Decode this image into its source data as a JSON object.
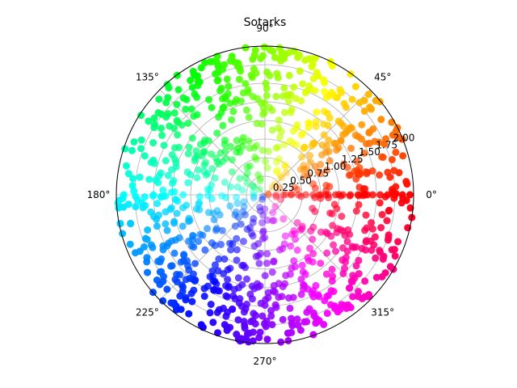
{
  "chart_data": {
    "type": "scatter",
    "projection": "polar",
    "title": "Sotarks",
    "rlim": [
      0,
      2.0
    ],
    "r_ticks": [
      "0.25",
      "0.50",
      "0.75",
      "1.00",
      "1.25",
      "1.50",
      "1.75",
      "2.00"
    ],
    "theta_ticks": [
      "0°",
      "45°",
      "90°",
      "135°",
      "180°",
      "225°",
      "270°",
      "315°"
    ],
    "grid": true,
    "colormap": "hsv (color by angle)",
    "legend": "none",
    "point_count": 1000,
    "points": [
      {
        "theta_deg": 0,
        "r": 0.05
      },
      {
        "theta_deg": 0,
        "r": 0.15
      },
      {
        "theta_deg": 0,
        "r": 0.25
      },
      {
        "theta_deg": 0,
        "r": 0.35
      },
      {
        "theta_deg": 0,
        "r": 0.45
      },
      {
        "theta_deg": 0,
        "r": 0.55
      },
      {
        "theta_deg": 0,
        "r": 0.65
      },
      {
        "theta_deg": 0,
        "r": 0.75
      },
      {
        "theta_deg": 0,
        "r": 0.85
      },
      {
        "theta_deg": 0,
        "r": 0.95
      },
      {
        "theta_deg": 0,
        "r": 1.05
      },
      {
        "theta_deg": 0,
        "r": 1.15
      },
      {
        "theta_deg": 0,
        "r": 1.25
      },
      {
        "theta_deg": 0,
        "r": 1.35
      },
      {
        "theta_deg": 0,
        "r": 1.45
      },
      {
        "theta_deg": 0,
        "r": 1.55
      },
      {
        "theta_deg": 0,
        "r": 1.65
      },
      {
        "theta_deg": 0,
        "r": 1.75
      },
      {
        "theta_deg": 0,
        "r": 1.85
      },
      {
        "theta_deg": 0,
        "r": 1.95
      },
      {
        "theta_deg": 8,
        "r": 1.7
      },
      {
        "theta_deg": 12,
        "r": 1.3
      },
      {
        "theta_deg": 18,
        "r": 1.85
      },
      {
        "theta_deg": 25,
        "r": 1.9
      },
      {
        "theta_deg": 30,
        "r": 1.5
      },
      {
        "theta_deg": 35,
        "r": 1.0
      },
      {
        "theta_deg": 40,
        "r": 1.75
      },
      {
        "theta_deg": 45,
        "r": 1.4
      },
      {
        "theta_deg": 50,
        "r": 1.9
      },
      {
        "theta_deg": 55,
        "r": 1.2
      },
      {
        "theta_deg": 60,
        "r": 1.6
      },
      {
        "theta_deg": 65,
        "r": 0.8
      },
      {
        "theta_deg": 70,
        "r": 1.95
      },
      {
        "theta_deg": 75,
        "r": 1.5
      },
      {
        "theta_deg": 82,
        "r": 1.85
      },
      {
        "theta_deg": 88,
        "r": 1.95
      },
      {
        "theta_deg": 95,
        "r": 1.7
      },
      {
        "theta_deg": 102,
        "r": 1.4
      },
      {
        "theta_deg": 110,
        "r": 1.85
      },
      {
        "theta_deg": 118,
        "r": 1.25
      },
      {
        "theta_deg": 125,
        "r": 1.6
      },
      {
        "theta_deg": 135,
        "r": 1.85
      },
      {
        "theta_deg": 142,
        "r": 1.1
      },
      {
        "theta_deg": 150,
        "r": 1.6
      },
      {
        "theta_deg": 158,
        "r": 1.9
      },
      {
        "theta_deg": 165,
        "r": 1.3
      },
      {
        "theta_deg": 172,
        "r": 1.7
      },
      {
        "theta_deg": 180,
        "r": 1.9
      },
      {
        "theta_deg": 180,
        "r": 1.5
      },
      {
        "theta_deg": 180,
        "r": 1.1
      },
      {
        "theta_deg": 186,
        "r": 1.65
      },
      {
        "theta_deg": 192,
        "r": 1.85
      },
      {
        "theta_deg": 200,
        "r": 1.4
      },
      {
        "theta_deg": 208,
        "r": 1.8
      },
      {
        "theta_deg": 215,
        "r": 1.2
      },
      {
        "theta_deg": 222,
        "r": 1.6
      },
      {
        "theta_deg": 230,
        "r": 1.9
      },
      {
        "theta_deg": 238,
        "r": 1.45
      },
      {
        "theta_deg": 245,
        "r": 1.75
      },
      {
        "theta_deg": 252,
        "r": 1.0
      },
      {
        "theta_deg": 260,
        "r": 1.6
      },
      {
        "theta_deg": 268,
        "r": 1.85
      },
      {
        "theta_deg": 275,
        "r": 1.3
      },
      {
        "theta_deg": 282,
        "r": 1.7
      },
      {
        "theta_deg": 290,
        "r": 1.05
      },
      {
        "theta_deg": 298,
        "r": 1.55
      },
      {
        "theta_deg": 305,
        "r": 1.8
      },
      {
        "theta_deg": 312,
        "r": 1.35
      },
      {
        "theta_deg": 320,
        "r": 1.65
      },
      {
        "theta_deg": 328,
        "r": 1.05
      },
      {
        "theta_deg": 335,
        "r": 1.5
      },
      {
        "theta_deg": 342,
        "r": 1.75
      },
      {
        "theta_deg": 350,
        "r": 1.25
      },
      {
        "theta_deg": 356,
        "r": 1.55
      }
    ]
  }
}
